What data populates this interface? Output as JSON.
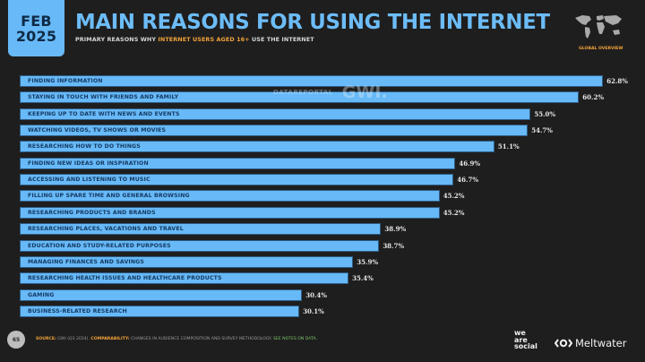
{
  "header": {
    "date_month": "FEB",
    "date_year": "2025",
    "title": "MAIN REASONS FOR USING THE INTERNET",
    "subtitle_prefix": "PRIMARY REASONS WHY ",
    "subtitle_highlight": "INTERNET USERS AGED 16+",
    "subtitle_suffix": " USE THE INTERNET",
    "map_label": "GLOBAL OVERVIEW"
  },
  "watermark": {
    "datareportal": "DATAREPORTAL",
    "gwi": "GWI."
  },
  "colors": {
    "bar": "#67b9f7",
    "title": "#6cbcf7",
    "highlight": "#f2a33a",
    "background": "#1f1e1e"
  },
  "chart_data": {
    "type": "bar",
    "orientation": "horizontal",
    "title": "MAIN REASONS FOR USING THE INTERNET",
    "subtitle": "PRIMARY REASONS WHY INTERNET USERS AGED 16+ USE THE INTERNET",
    "xlabel": "",
    "ylabel": "",
    "value_suffix": "%",
    "grid": false,
    "legend": "none",
    "categories": [
      "FINDING INFORMATION",
      "STAYING IN TOUCH WITH FRIENDS AND FAMILY",
      "KEEPING UP TO DATE WITH NEWS AND EVENTS",
      "WATCHING VIDEOS, TV SHOWS OR MOVIES",
      "RESEARCHING HOW TO DO THINGS",
      "FINDING NEW IDEAS OR INSPIRATION",
      "ACCESSING AND LISTENING TO MUSIC",
      "FILLING UP SPARE TIME AND GENERAL BROWSING",
      "RESEARCHING PRODUCTS AND BRANDS",
      "RESEARCHING PLACES, VACATIONS AND TRAVEL",
      "EDUCATION AND STUDY-RELATED PURPOSES",
      "MANAGING FINANCES AND SAVINGS",
      "RESEARCHING HEALTH ISSUES AND HEALTHCARE PRODUCTS",
      "GAMING",
      "BUSINESS-RELATED RESEARCH"
    ],
    "values": [
      62.8,
      60.2,
      55.0,
      54.7,
      51.1,
      46.9,
      46.7,
      45.2,
      45.2,
      38.9,
      38.7,
      35.9,
      35.4,
      30.4,
      30.1
    ],
    "labels": [
      "62.8%",
      "60.2%",
      "55.0%",
      "54.7%",
      "51.1%",
      "46.9%",
      "46.7%",
      "45.2%",
      "45.2%",
      "38.9%",
      "38.7%",
      "35.9%",
      "35.4%",
      "30.4%",
      "30.1%"
    ]
  },
  "footer": {
    "page_number": "65",
    "source_label": "SOURCE:",
    "source_text": " GWI (Q3 2024). ",
    "comparability_label": "COMPARABILITY:",
    "comparability_text": " CHANGES IN AUDIENCE COMPOSITION AND SURVEY METHODOLOGY. ",
    "notes_text": "SEE NOTES ON DATA.",
    "brand_1_line1": "we",
    "brand_1_line2": "are",
    "brand_1_line3": "social",
    "brand_2": "Meltwater"
  }
}
